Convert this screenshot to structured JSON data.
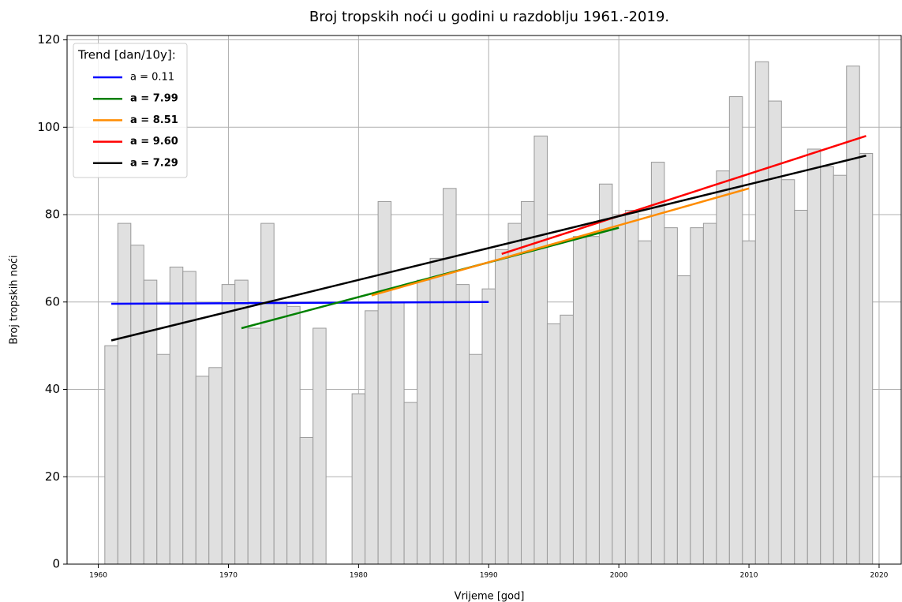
{
  "chart_data": {
    "type": "bar",
    "title": "Broj tropskih noći u godini u razdoblju 1961.-2019.",
    "xlabel": "Vrijeme [god]",
    "ylabel": "Broj tropskih noći",
    "x": [
      1961,
      1962,
      1963,
      1964,
      1965,
      1966,
      1967,
      1968,
      1969,
      1970,
      1971,
      1972,
      1973,
      1974,
      1975,
      1976,
      1977,
      1978,
      1979,
      1980,
      1981,
      1982,
      1983,
      1984,
      1985,
      1986,
      1987,
      1988,
      1989,
      1990,
      1991,
      1992,
      1993,
      1994,
      1995,
      1996,
      1997,
      1998,
      1999,
      2000,
      2001,
      2002,
      2003,
      2004,
      2005,
      2006,
      2007,
      2008,
      2009,
      2010,
      2011,
      2012,
      2013,
      2014,
      2015,
      2016,
      2017,
      2018,
      2019
    ],
    "values": [
      50,
      78,
      73,
      65,
      48,
      68,
      67,
      43,
      45,
      64,
      65,
      54,
      78,
      60,
      59,
      29,
      54,
      null,
      null,
      39,
      58,
      83,
      60,
      37,
      65,
      70,
      86,
      64,
      48,
      63,
      72,
      78,
      83,
      98,
      55,
      57,
      75,
      75,
      87,
      80,
      81,
      74,
      92,
      77,
      66,
      77,
      78,
      90,
      107,
      74,
      115,
      106,
      88,
      81,
      95,
      91,
      89,
      114,
      94
    ],
    "color": "#e0e0e0",
    "xlim": [
      1957.6,
      2021.7
    ],
    "xticks": [
      1960,
      1970,
      1980,
      1990,
      2000,
      2010,
      2020
    ],
    "ylim": [
      0,
      121
    ],
    "yticks": [
      0,
      20,
      40,
      60,
      80,
      100,
      120
    ],
    "grid": true,
    "legend_title": "Trend [dan/10y]:",
    "legend": "upper left",
    "trends": [
      {
        "name": "a = 0.11",
        "color": "#0000ff",
        "bold": false,
        "x": [
          1961,
          1990
        ],
        "values": [
          59.6,
          60
        ]
      },
      {
        "name": "a = 7.99",
        "color": "#008000",
        "bold": true,
        "x": [
          1971,
          2000
        ],
        "values": [
          54,
          77
        ]
      },
      {
        "name": "a = 8.51",
        "color": "#ff8c00",
        "bold": true,
        "x": [
          1981,
          2010
        ],
        "values": [
          61.5,
          86
        ]
      },
      {
        "name": "a = 9.60",
        "color": "#ff0000",
        "bold": true,
        "x": [
          1991,
          2019
        ],
        "values": [
          71,
          98
        ]
      },
      {
        "name": "a = 7.29",
        "color": "#000000",
        "bold": true,
        "x": [
          1961,
          2019
        ],
        "values": [
          51.2,
          93.5
        ]
      }
    ]
  }
}
